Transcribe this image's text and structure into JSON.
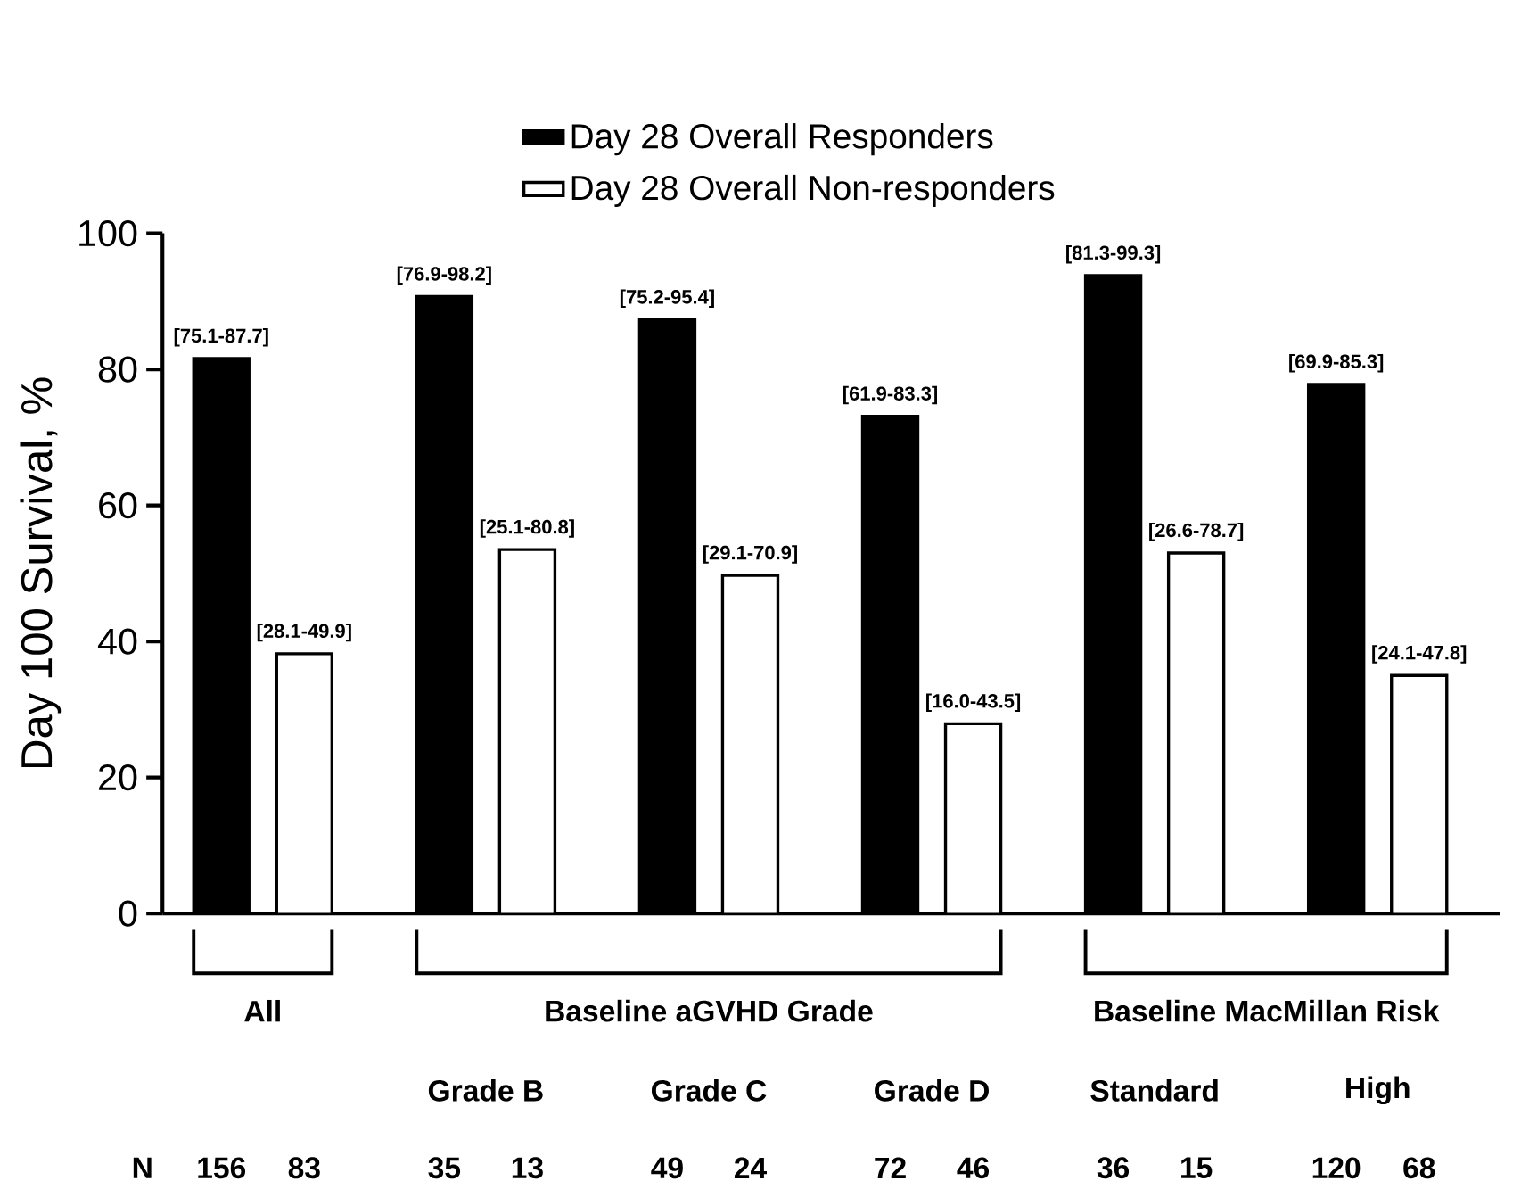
{
  "chart_data": {
    "type": "bar",
    "ylabel": "Day 100 Survival, %",
    "categories": [
      null,
      "Grade B",
      "Grade C",
      "Grade D",
      "Standard",
      "High"
    ],
    "series": [
      {
        "name": "Day 28 Overall Responders",
        "color": "#000000",
        "values": [
          81.6,
          90.7,
          87.3,
          73.1,
          93.8,
          77.8
        ],
        "value_labels": [
          "[75.1-87.7]",
          "[76.9-98.2]",
          "[75.2-95.4]",
          "[61.9-83.3]",
          "[81.3-99.3]",
          "[69.9-85.3]"
        ]
      },
      {
        "name": "Day 28 Overall Non-responders",
        "color": "#ffffff",
        "values": [
          38.2,
          53.5,
          49.7,
          27.9,
          53.0,
          35.0
        ],
        "value_labels": [
          "[28.1-49.9]",
          "[25.1-80.8]",
          "[29.1-70.9]",
          "[16.0-43.5]",
          "[26.6-78.7]",
          "[24.1-47.8]"
        ]
      }
    ],
    "ylim": [
      0,
      100
    ],
    "yticks": [
      0,
      20,
      40,
      60,
      80,
      100
    ],
    "legend": "top",
    "annotations": [
      "All",
      "Baseline aGVHD Grade",
      "Baseline MacMillan Risk",
      "N",
      "156",
      "83",
      "35",
      "13",
      "49",
      "24",
      "72",
      "46",
      "36",
      "15",
      "120",
      "68"
    ]
  }
}
